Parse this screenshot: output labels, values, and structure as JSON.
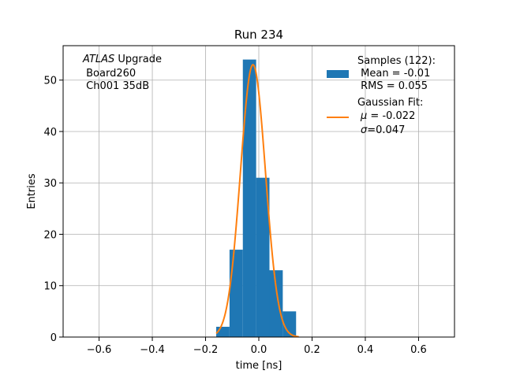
{
  "chart_data": {
    "type": "bar",
    "title": "Run 234",
    "xlabel": "time [ns]",
    "ylabel": "Entries",
    "xlim": [
      -0.735,
      0.735
    ],
    "ylim": [
      0,
      56.7
    ],
    "xticks": [
      -0.6,
      -0.4,
      -0.2,
      0.0,
      0.2,
      0.4,
      0.6
    ],
    "xtick_labels": [
      "−0.6",
      "−0.4",
      "−0.2",
      "0.0",
      "0.2",
      "0.4",
      "0.6"
    ],
    "yticks": [
      0,
      10,
      20,
      30,
      40,
      50
    ],
    "ytick_labels": [
      "0",
      "10",
      "20",
      "30",
      "40",
      "50"
    ],
    "grid": true,
    "histogram": {
      "name": "Samples (122):",
      "color": "#1f77b4",
      "bin_edges": [
        -0.16,
        -0.11,
        -0.06,
        -0.01,
        0.04,
        0.09,
        0.14
      ],
      "counts": [
        2,
        17,
        54,
        31,
        13,
        5
      ]
    },
    "fit": {
      "name": "Gaussian Fit:",
      "color": "#ff7f0e",
      "mu": -0.022,
      "sigma": 0.047,
      "amplitude": 53,
      "x_range": [
        -0.16,
        0.15
      ]
    },
    "legend": {
      "placement": "top-right",
      "samples_title": "Samples (122):",
      "samples_mean": " Mean = -0.01",
      "samples_rms": " RMS = 0.055",
      "fit_title": "Gaussian Fit:",
      "fit_mu_sym": "μ",
      "fit_mu_val": " = -0.022",
      "fit_sigma_sym": "σ",
      "fit_sigma_val": "=0.047"
    },
    "annotation": {
      "experiment": "ATLAS",
      "word": " Upgrade",
      "board": " Board260",
      "channel": " Ch001 35dB"
    }
  }
}
